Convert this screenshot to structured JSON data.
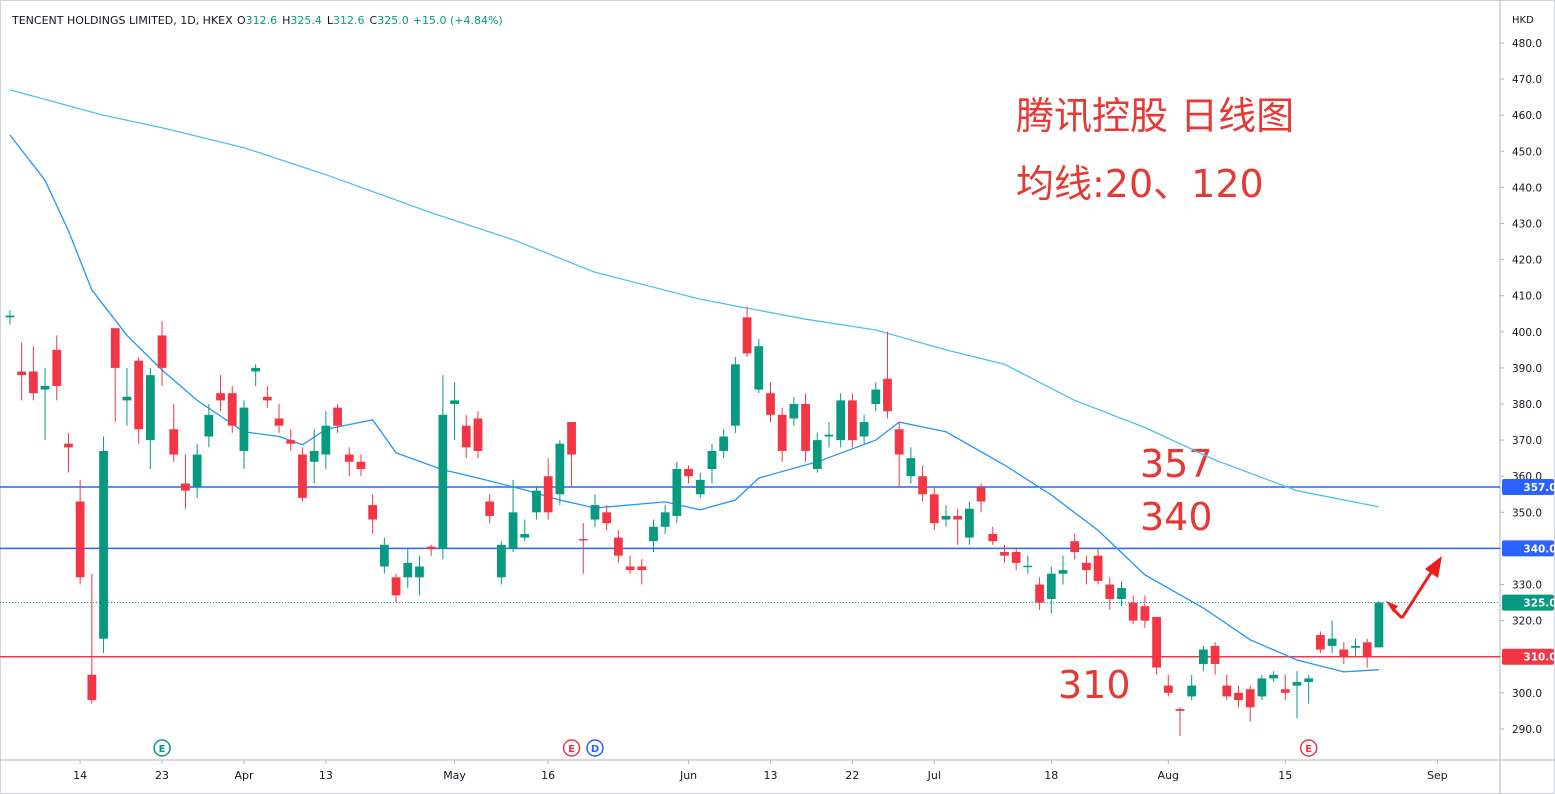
{
  "chart_data": {
    "type": "candlestick",
    "header": {
      "title": "TENCENT HOLDINGS LIMITED, 1D, HKEX",
      "fields": [
        "O",
        "312.6",
        "H",
        "325.4",
        "L",
        "312.6",
        "C",
        "325.0"
      ],
      "change": "+15.0 (+4.84%)"
    },
    "currency": "HKD",
    "up_color": "#089981",
    "down_color": "#f23645",
    "open": [
      404,
      389,
      389,
      384,
      395,
      369,
      353,
      305,
      315,
      401,
      381,
      392,
      370,
      399,
      373,
      358,
      357,
      371,
      383,
      383,
      367,
      389,
      382,
      376,
      370,
      366,
      364,
      366,
      379,
      366,
      364,
      352,
      335,
      332,
      332,
      332,
      340.5,
      340,
      380,
      374,
      376,
      353,
      332,
      340,
      343,
      350,
      360,
      355,
      375,
      342.6,
      348,
      350,
      343,
      335,
      335,
      342,
      346,
      349,
      362,
      355,
      362,
      367,
      374,
      404,
      384,
      383,
      377,
      376,
      380,
      362,
      371,
      370,
      381,
      371,
      380,
      387,
      373,
      360,
      360,
      355,
      348,
      349,
      343,
      357,
      344,
      339,
      339,
      334.8,
      330,
      326,
      333,
      342,
      336,
      338,
      330,
      326,
      325,
      324,
      321,
      302,
      295.5,
      299,
      308,
      313,
      302,
      300,
      301,
      299,
      304,
      301,
      302,
      303,
      316,
      313,
      312,
      312.5,
      314,
      312.6
    ],
    "high": [
      406,
      397,
      396,
      390,
      399,
      372,
      359,
      333,
      371,
      401,
      390,
      393,
      390,
      403,
      380,
      366,
      369,
      380,
      388,
      385,
      381,
      391,
      385,
      380,
      373,
      368,
      373,
      378,
      380,
      368,
      366,
      355,
      343,
      333,
      340,
      338,
      341,
      388,
      386,
      377,
      378,
      355,
      342,
      359,
      348,
      357,
      365,
      370,
      375,
      347,
      355,
      352,
      345,
      338,
      337,
      348,
      352,
      364,
      363,
      361,
      369,
      373,
      393,
      407,
      398,
      386,
      379,
      382,
      383,
      372,
      375,
      383,
      383,
      377,
      386,
      400,
      375,
      368,
      363,
      357,
      352,
      351,
      353,
      358,
      346,
      341,
      340,
      338,
      332,
      335,
      338,
      344,
      338,
      340,
      332,
      331,
      327,
      327,
      321,
      305,
      296,
      305,
      313,
      314,
      305,
      302,
      302,
      305,
      306,
      305,
      306,
      305,
      317,
      320,
      314,
      315,
      315,
      325.4
    ],
    "low": [
      402,
      381,
      381,
      370,
      381,
      361,
      330,
      297,
      311,
      375,
      374,
      369,
      362,
      385,
      364,
      351,
      354,
      368,
      378,
      372,
      362,
      385,
      379,
      372,
      367,
      353,
      358,
      362,
      372,
      360,
      360,
      344,
      333,
      325,
      329,
      327,
      338,
      337,
      370,
      365,
      365,
      347,
      330,
      339,
      342,
      348,
      348,
      352,
      357,
      333,
      346,
      345,
      336,
      333,
      330,
      339,
      344,
      347,
      358,
      354,
      358,
      365,
      372,
      393,
      383,
      375,
      364,
      374,
      364,
      361,
      368,
      368,
      368,
      369,
      378,
      376,
      357,
      358,
      353,
      345,
      346,
      341,
      341,
      350,
      341,
      336,
      334,
      333,
      323,
      322,
      330,
      337,
      330,
      330,
      323,
      324,
      319,
      318,
      305,
      299,
      288,
      298,
      306,
      305,
      298,
      296,
      292,
      298,
      303,
      298,
      293,
      297,
      311,
      311,
      308,
      310,
      307,
      312.6
    ],
    "close": [
      404.5,
      388,
      383,
      385,
      385,
      368,
      332,
      298,
      367,
      390,
      382,
      373,
      388,
      390,
      366,
      356,
      366,
      377,
      381,
      374,
      379,
      390,
      381,
      374,
      369,
      354,
      367,
      374,
      374,
      364,
      362,
      348,
      341,
      327,
      336,
      335,
      339.8,
      377,
      381,
      368,
      367,
      349,
      341,
      350,
      344,
      356,
      350,
      369,
      366,
      342.2,
      352,
      347,
      338,
      334,
      334,
      346,
      350,
      362,
      360,
      359,
      367,
      371,
      391,
      394,
      396,
      377,
      367,
      380,
      367,
      370,
      371.5,
      381,
      370,
      375,
      384,
      378,
      366,
      365,
      355,
      347,
      349,
      348,
      351,
      353,
      342,
      338,
      336,
      335.2,
      325,
      333,
      334,
      339,
      334,
      331,
      326,
      329,
      320,
      320,
      307,
      300,
      295,
      302,
      312,
      308,
      299,
      298,
      296,
      304,
      305,
      300,
      303,
      304,
      312,
      315,
      310,
      313,
      310,
      325
    ],
    "lines": [
      {
        "color": "#2196f3",
        "x": [
          0,
          3,
          5,
          7,
          10,
          13,
          16,
          20,
          23,
          25,
          27,
          31,
          33,
          37,
          40,
          44,
          47,
          50,
          56,
          59,
          62,
          64,
          69,
          74,
          76,
          80,
          85,
          89,
          93,
          97,
          102,
          106,
          110,
          114,
          117
        ],
        "values": [
          454.5,
          442,
          428,
          411.6,
          399,
          389.4,
          381,
          372.3,
          371,
          368.7,
          373,
          375.6,
          366.5,
          361.8,
          359.5,
          356.2,
          353.4,
          351.2,
          352.9,
          350.7,
          353.4,
          359.5,
          364,
          370,
          375,
          372.3,
          363.1,
          354.8,
          345,
          332.7,
          323.5,
          314.7,
          309.1,
          305.8,
          306.4
        ]
      },
      {
        "color": "#4dc3e6",
        "x": [
          0,
          8,
          13,
          20,
          27,
          36,
          43,
          50,
          59,
          68,
          74,
          80,
          85,
          91,
          97,
          103,
          110,
          117
        ],
        "values": [
          467,
          460,
          456.5,
          451,
          443.5,
          433,
          425.5,
          416.5,
          409,
          403.5,
          400.5,
          395,
          391,
          381,
          373.5,
          364.5,
          356,
          351.5
        ]
      }
    ],
    "hlines": [
      {
        "value": 357,
        "label": "357.0",
        "color": "#2962ff"
      },
      {
        "value": 340,
        "label": "340.0",
        "color": "#2962ff"
      },
      {
        "value": 310,
        "label": "310.0",
        "color": "#f23645"
      }
    ],
    "last_price": {
      "value": 325,
      "label": "325.0",
      "color": "#089981"
    },
    "annotations": [
      "腾讯控股 日线图",
      "均线:20、120",
      "357",
      "340",
      "310"
    ],
    "events": [
      {
        "x": 13,
        "label": "E",
        "color": "#089981"
      },
      {
        "x": 48,
        "label": "E",
        "color": "#f23645"
      },
      {
        "x": 50,
        "label": "D",
        "color": "#2962ff"
      },
      {
        "x": 111,
        "label": "E",
        "color": "#f23645"
      }
    ],
    "xlim": [
      -0.85,
      127.35
    ],
    "xticks": [
      {
        "value": 6,
        "label": "14"
      },
      {
        "value": 13,
        "label": "23"
      },
      {
        "value": 20,
        "label": "Apr"
      },
      {
        "value": 27,
        "label": "13"
      },
      {
        "value": 38,
        "label": "May"
      },
      {
        "value": 46,
        "label": "16"
      },
      {
        "value": 58,
        "label": "Jun"
      },
      {
        "value": 65,
        "label": "13"
      },
      {
        "value": 72,
        "label": "22"
      },
      {
        "value": 79,
        "label": "Jul"
      },
      {
        "value": 89,
        "label": "18"
      },
      {
        "value": 99,
        "label": "Aug"
      },
      {
        "value": 109,
        "label": "15"
      },
      {
        "value": 122,
        "label": "Sep"
      }
    ],
    "ylim": [
      281.4,
      491.9
    ],
    "yticks": [
      {
        "value": 290,
        "label": "290.0"
      },
      {
        "value": 300,
        "label": "300.0"
      },
      {
        "value": 310,
        "label": "310.0"
      },
      {
        "value": 320,
        "label": "320.0"
      },
      {
        "value": 330,
        "label": "330.0"
      },
      {
        "value": 340,
        "label": "340.0"
      },
      {
        "value": 350,
        "label": "350.0"
      },
      {
        "value": 360,
        "label": "360.0"
      },
      {
        "value": 370,
        "label": "370.0"
      },
      {
        "value": 380,
        "label": "380.0"
      },
      {
        "value": 390,
        "label": "390.0"
      },
      {
        "value": 400,
        "label": "400.0"
      },
      {
        "value": 410,
        "label": "410.0"
      },
      {
        "value": 420,
        "label": "420.0"
      },
      {
        "value": 430,
        "label": "430.0"
      },
      {
        "value": 440,
        "label": "440.0"
      },
      {
        "value": 450,
        "label": "450.0"
      },
      {
        "value": 460,
        "label": "460.0"
      },
      {
        "value": 470,
        "label": "470.0"
      },
      {
        "value": 480,
        "label": "480.0"
      }
    ]
  }
}
